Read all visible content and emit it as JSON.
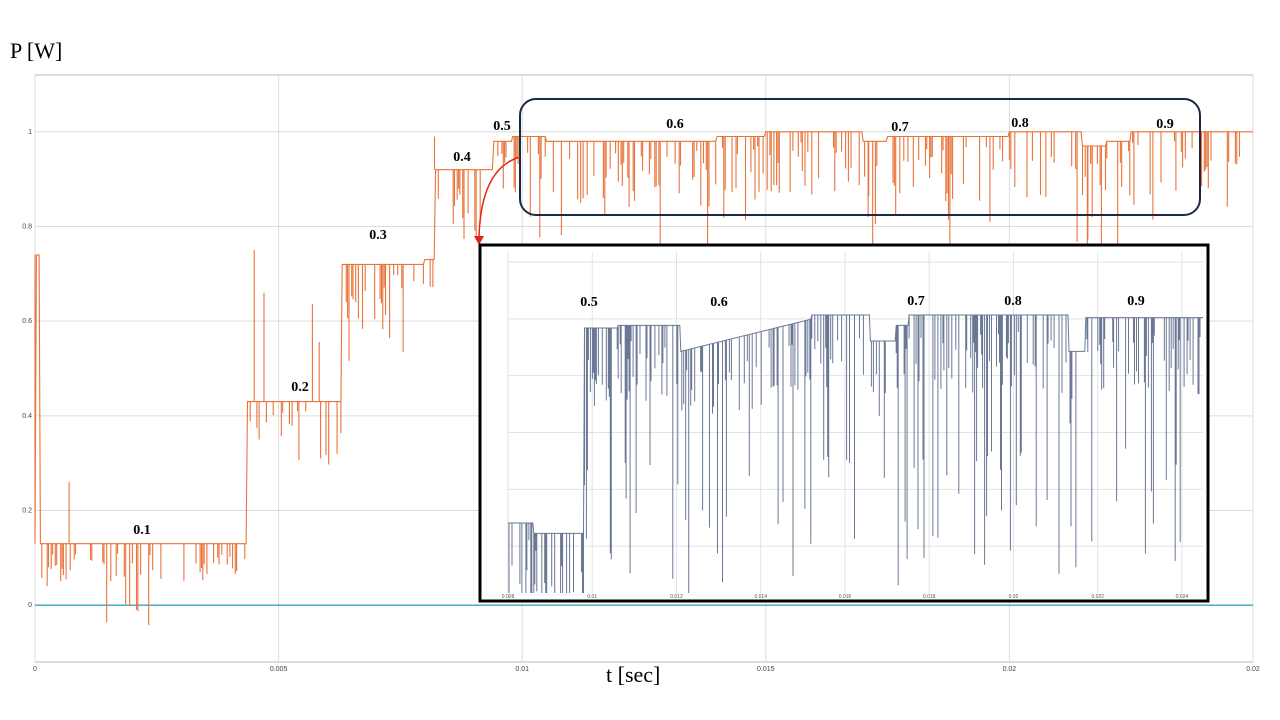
{
  "chart_data": [
    {
      "type": "line",
      "ylabel": "P [W]",
      "xlabel": "t [sec]",
      "xlim": [
        0,
        0.025
      ],
      "ylim": [
        -0.12,
        1.12
      ],
      "x_ticks": [
        "0",
        "0.005",
        "0.01",
        "0.015",
        "0.02",
        "0.02"
      ],
      "y_ticks": [
        "0",
        "0.2",
        "0.4",
        "0.6",
        "0.8",
        "1"
      ],
      "grid": true,
      "colors": {
        "power": "#e8743b",
        "zero_line": "#3aa6c9",
        "highlight_box": "#1b2a44",
        "arrow": "#e0261c"
      },
      "series": [
        {
          "x": [
            0,
            0.0001,
            0.0043,
            0.00435,
            0.0062,
            0.0063,
            0.008,
            0.0082,
            0.0092,
            0.0094,
            0.0098,
            0.0105,
            0.012,
            0.014,
            0.015,
            0.0165,
            0.017,
            0.0175,
            0.02,
            0.021,
            0.0215,
            0.022,
            0.0225,
            0.025
          ],
          "y": [
            0.74,
            0.13,
            0.13,
            0.43,
            0.43,
            0.72,
            0.73,
            0.92,
            0.92,
            0.98,
            0.99,
            0.98,
            0.98,
            0.99,
            1.0,
            1.0,
            0.98,
            0.99,
            1.0,
            1.0,
            0.97,
            0.98,
            1.0,
            1.0
          ]
        },
        {
          "x": [
            0,
            0.025
          ],
          "y": [
            0,
            0
          ]
        }
      ],
      "annotations": [
        "0.1",
        "0.2",
        "0.3",
        "0.4",
        "0.5",
        "0.6",
        "0.7",
        "0.8",
        "0.9"
      ]
    },
    {
      "type": "line",
      "inset": true,
      "x_ticks": [
        "0.008",
        "0.01",
        "0.012",
        "0.014",
        "0.016",
        "0.018",
        "0.02",
        "0.022",
        "0.024"
      ],
      "color": "#6a7896",
      "annotations": [
        "0.5",
        "0.6",
        "0.7",
        "0.8",
        "0.9"
      ]
    }
  ]
}
